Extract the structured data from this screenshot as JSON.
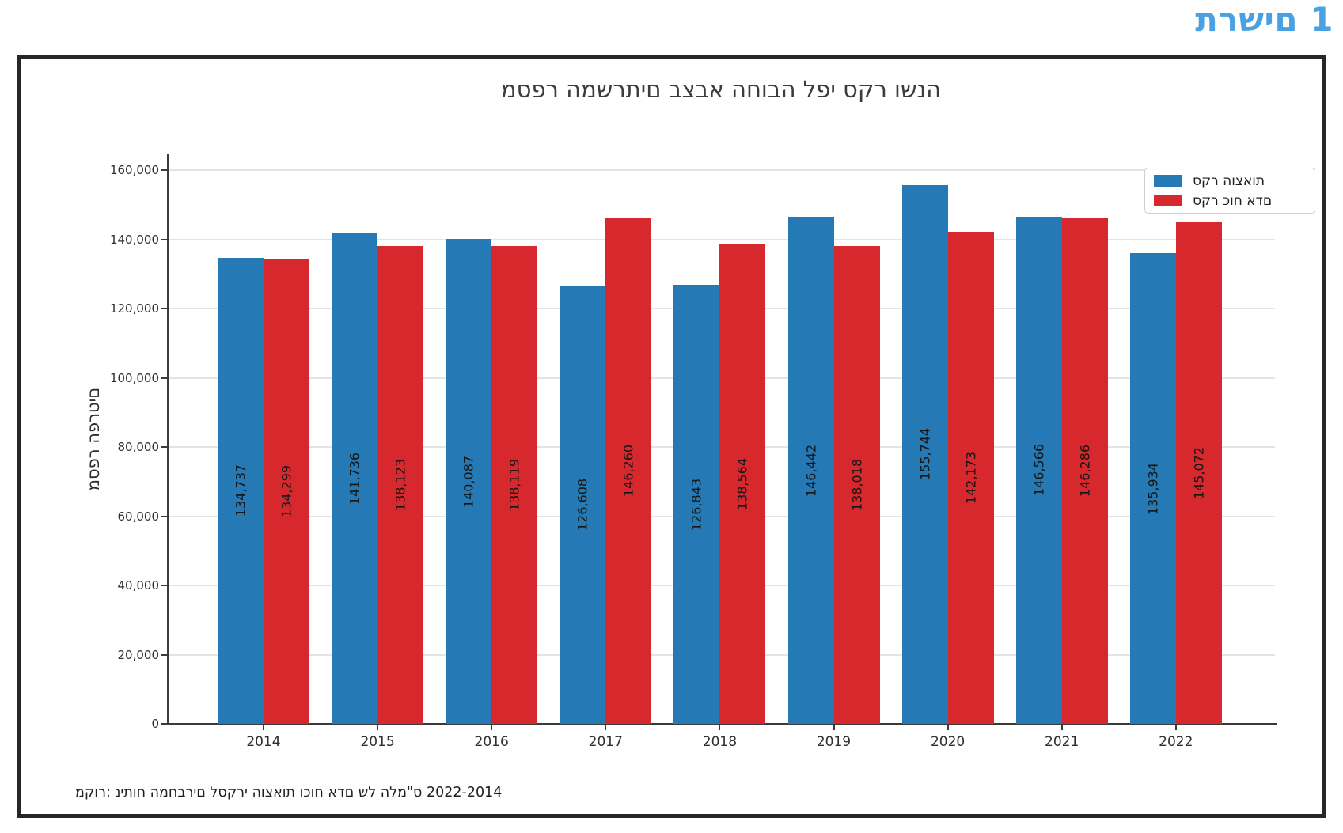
{
  "page": {
    "heading": "תרשים 1",
    "heading_color": "#4AA1E2",
    "source_note": "מקור: ניתוח המחברים לסקרי הוצאות וכוח אדם של הלמ\"ס 2022-2014"
  },
  "chart_data": {
    "type": "bar",
    "title": "מספר המשרתים בצבא החובה לפי סקר ושנה",
    "ylabel": "מספר הפרטים",
    "categories": [
      "2014",
      "2015",
      "2016",
      "2017",
      "2018",
      "2019",
      "2020",
      "2021",
      "2022"
    ],
    "series": [
      {
        "name": "סקר הוצאות",
        "color": "#2579B5",
        "values": [
          134737,
          141736,
          140087,
          126608,
          126843,
          146442,
          155744,
          146566,
          135934
        ]
      },
      {
        "name": "סקר כוח אדם",
        "color": "#D7282E",
        "values": [
          134299,
          138123,
          138119,
          146260,
          138564,
          138018,
          142173,
          146286,
          145072
        ]
      }
    ],
    "yticks": [
      0,
      20000,
      40000,
      60000,
      80000,
      100000,
      120000,
      140000,
      160000
    ],
    "ylim": [
      0,
      164500
    ],
    "grid": "horizontal",
    "legend_position": "top-right",
    "value_labels": "inside-bars-rotated-90"
  }
}
